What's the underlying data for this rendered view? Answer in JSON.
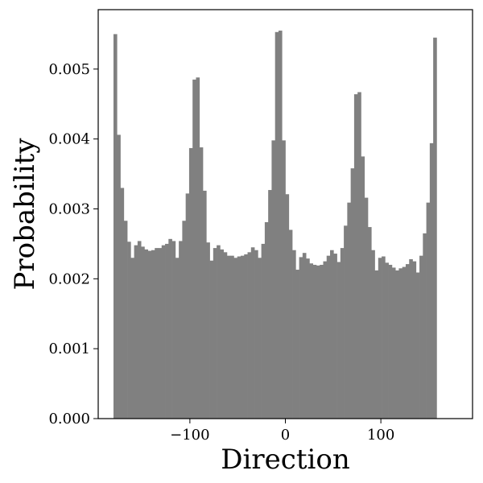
{
  "chart_data": {
    "type": "bar",
    "title": "",
    "xlabel": "Direction",
    "ylabel": "Probability",
    "xlim": [
      -196,
      196
    ],
    "ylim": [
      0,
      0.00585
    ],
    "bar_color": "#808080",
    "grid": false,
    "x_ticks": [
      -100,
      0,
      100
    ],
    "x_tick_labels": [
      "−100",
      "0",
      "100"
    ],
    "y_ticks": [
      0.0,
      0.001,
      0.002,
      0.003,
      0.004,
      0.005
    ],
    "y_tick_labels": [
      "0.000",
      "0.001",
      "0.002",
      "0.003",
      "0.004",
      "0.005"
    ],
    "bin_start": -180,
    "bin_width": 3.6,
    "values": [
      0.0055,
      0.00406,
      0.0033,
      0.00283,
      0.00253,
      0.0023,
      0.00248,
      0.00254,
      0.00246,
      0.00242,
      0.0024,
      0.00241,
      0.00244,
      0.00244,
      0.00248,
      0.0025,
      0.00257,
      0.00254,
      0.0023,
      0.00254,
      0.00283,
      0.00322,
      0.00387,
      0.00485,
      0.00488,
      0.00388,
      0.00326,
      0.00252,
      0.00226,
      0.00244,
      0.00248,
      0.00242,
      0.00238,
      0.00233,
      0.00233,
      0.0023,
      0.00232,
      0.00233,
      0.00235,
      0.00238,
      0.00245,
      0.00241,
      0.0023,
      0.0025,
      0.00281,
      0.00327,
      0.00398,
      0.00553,
      0.00555,
      0.00398,
      0.00321,
      0.0027,
      0.00241,
      0.00213,
      0.00231,
      0.00237,
      0.00229,
      0.00222,
      0.0022,
      0.00219,
      0.0022,
      0.00225,
      0.00233,
      0.00241,
      0.00236,
      0.00224,
      0.00244,
      0.00276,
      0.00309,
      0.00358,
      0.00464,
      0.00467,
      0.00375,
      0.00316,
      0.00274,
      0.00241,
      0.00212,
      0.0023,
      0.00232,
      0.00223,
      0.0022,
      0.00216,
      0.00212,
      0.00215,
      0.00217,
      0.00221,
      0.00228,
      0.00225,
      0.00209,
      0.00233,
      0.00265,
      0.00309,
      0.00394,
      0.00545
    ]
  }
}
